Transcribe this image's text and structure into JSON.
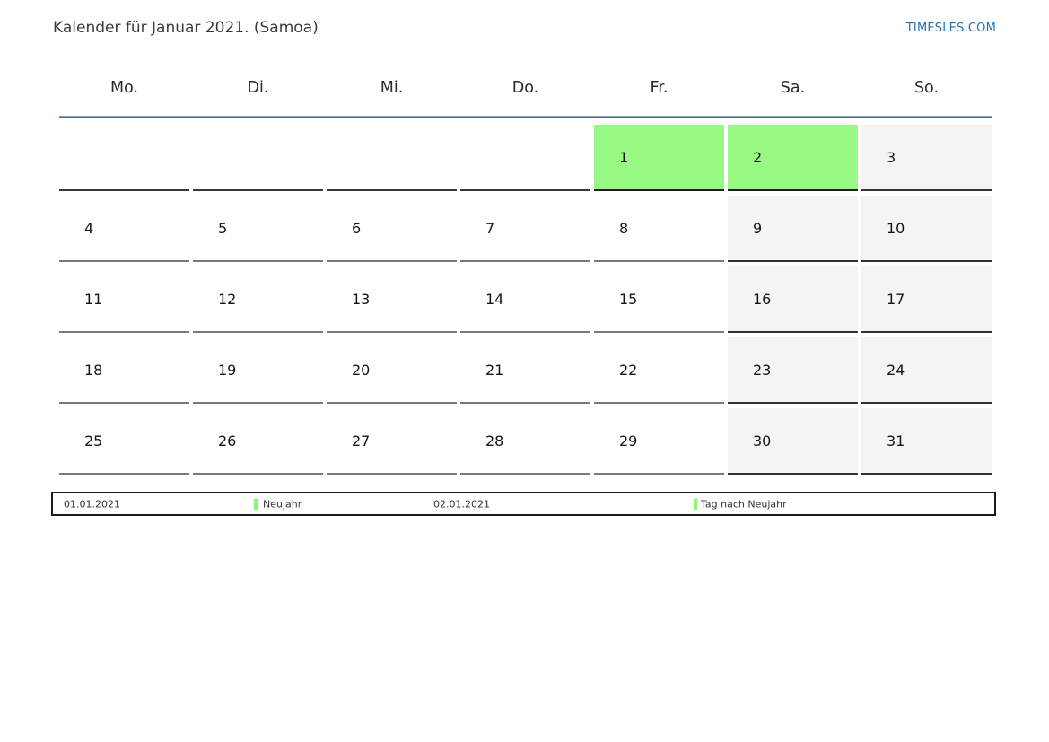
{
  "header": {
    "title": "Kalender für Januar 2021. (Samoa)",
    "brand": "TIMESLES.COM"
  },
  "calendar": {
    "weekdays": [
      "Mo.",
      "Di.",
      "Mi.",
      "Do.",
      "Fr.",
      "Sa.",
      "So."
    ],
    "weeks": [
      [
        {
          "day": "",
          "type": "empty"
        },
        {
          "day": "",
          "type": "empty"
        },
        {
          "day": "",
          "type": "empty"
        },
        {
          "day": "",
          "type": "empty"
        },
        {
          "day": "1",
          "type": "holiday"
        },
        {
          "day": "2",
          "type": "holiday"
        },
        {
          "day": "3",
          "type": "weekend"
        }
      ],
      [
        {
          "day": "4",
          "type": "weekday"
        },
        {
          "day": "5",
          "type": "weekday"
        },
        {
          "day": "6",
          "type": "weekday"
        },
        {
          "day": "7",
          "type": "weekday"
        },
        {
          "day": "8",
          "type": "weekday"
        },
        {
          "day": "9",
          "type": "weekend"
        },
        {
          "day": "10",
          "type": "weekend"
        }
      ],
      [
        {
          "day": "11",
          "type": "weekday"
        },
        {
          "day": "12",
          "type": "weekday"
        },
        {
          "day": "13",
          "type": "weekday"
        },
        {
          "day": "14",
          "type": "weekday"
        },
        {
          "day": "15",
          "type": "weekday"
        },
        {
          "day": "16",
          "type": "weekend"
        },
        {
          "day": "17",
          "type": "weekend"
        }
      ],
      [
        {
          "day": "18",
          "type": "weekday"
        },
        {
          "day": "19",
          "type": "weekday"
        },
        {
          "day": "20",
          "type": "weekday"
        },
        {
          "day": "21",
          "type": "weekday"
        },
        {
          "day": "22",
          "type": "weekday"
        },
        {
          "day": "23",
          "type": "weekend"
        },
        {
          "day": "24",
          "type": "weekend"
        }
      ],
      [
        {
          "day": "25",
          "type": "weekday"
        },
        {
          "day": "26",
          "type": "weekday"
        },
        {
          "day": "27",
          "type": "weekday"
        },
        {
          "day": "28",
          "type": "weekday"
        },
        {
          "day": "29",
          "type": "weekday"
        },
        {
          "day": "30",
          "type": "weekend"
        },
        {
          "day": "31",
          "type": "weekend"
        }
      ]
    ]
  },
  "legend": {
    "entries": [
      {
        "date": "01.01.2021",
        "label": "Neujahr"
      },
      {
        "date": "02.01.2021",
        "label": "Tag nach Neujahr"
      }
    ]
  },
  "colors": {
    "holiday_green": "#98f985",
    "weekend_gray": "#f4f4f4",
    "header_rule_blue": "#4d7097",
    "brand_blue": "#2273b9"
  }
}
